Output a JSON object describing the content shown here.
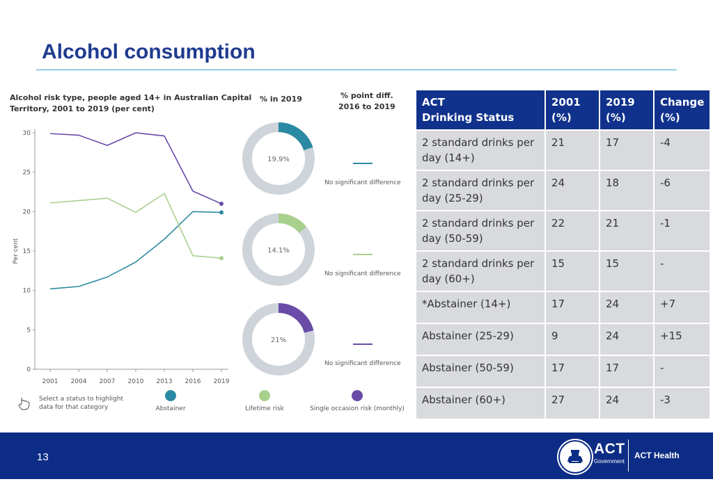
{
  "page": {
    "title": "Alcohol consumption",
    "page_number": "13"
  },
  "chart": {
    "title_line1": "Alcohol risk type, people aged 14+ in Australian Capital",
    "title_line2": "Territory, 2001 to 2019 (per cent)",
    "col_2019": "% in 2019",
    "col_diff_line1": "% point diff.",
    "col_diff_line2": "2016 to 2019",
    "ylabel": "Per cent",
    "hint_line1": "Select a status to highlight",
    "hint_line2": "data for that category"
  },
  "chart_data": {
    "type": "line",
    "title": "Alcohol risk type, people aged 14+ in Australian Capital Territory, 2001 to 2019 (per cent)",
    "xlabel": "",
    "ylabel": "Per cent",
    "categories": [
      "2001",
      "2004",
      "2007",
      "2010",
      "2013",
      "2016",
      "2019"
    ],
    "yticks": [
      "0",
      "5",
      "10",
      "15",
      "20",
      "25",
      "30"
    ],
    "ylim": [
      0,
      30
    ],
    "series": [
      {
        "name": "Abstainer",
        "color": "#2b8aa3",
        "values": [
          10.2,
          10.5,
          11.7,
          13.6,
          16.5,
          20.0,
          19.9
        ],
        "pct_2019": "19.9%",
        "diff": "No significant difference"
      },
      {
        "name": "Lifetime risk",
        "color": "#a8d08d",
        "values": [
          21.1,
          21.4,
          21.7,
          19.9,
          22.3,
          14.4,
          14.1
        ],
        "pct_2019": "14.1%",
        "diff": "No significant difference"
      },
      {
        "name": "Single occasion risk (monthly)",
        "color": "#6a4ba8",
        "values": [
          29.9,
          29.7,
          28.4,
          30.0,
          29.6,
          22.6,
          21.0
        ],
        "pct_2019": "21%",
        "diff": "No significant difference"
      }
    ]
  },
  "table": {
    "header_line1": "ACT",
    "header_line2": "Drinking Status",
    "col_2001": "2001 (%)",
    "col_2019": "2019 (%)",
    "col_change": "Change (%)",
    "rows": [
      {
        "status": "2 standard drinks per day (14+)",
        "y2001": "21",
        "y2019": "17",
        "change": "-4"
      },
      {
        "status": "2 standard drinks per day (25-29)",
        "y2001": "24",
        "y2019": "18",
        "change": "-6"
      },
      {
        "status": "2 standard drinks per day (50-59)",
        "y2001": "22",
        "y2019": "21",
        "change": "-1"
      },
      {
        "status": "2 standard drinks per day (60+)",
        "y2001": "15",
        "y2019": "15",
        "change": "-"
      },
      {
        "status": "*Abstainer (14+)",
        "y2001": "17",
        "y2019": "24",
        "change": "+7"
      },
      {
        "status": "Abstainer (25-29)",
        "y2001": "9",
        "y2019": "24",
        "change": "+15"
      },
      {
        "status": "Abstainer (50-59)",
        "y2001": "17",
        "y2019": "17",
        "change": "-"
      },
      {
        "status": "Abstainer (60+)",
        "y2001": "27",
        "y2019": "24",
        "change": "-3"
      }
    ]
  },
  "footer": {
    "logo_name": "ACT",
    "logo_sub": "Government",
    "department": "ACT Health"
  },
  "colors": {
    "title": "#1f3b8f",
    "footer": "#0d2c85",
    "table_header": "#10328c",
    "table_cell": "#d8dadd",
    "donut_track": "#cfd4da"
  }
}
